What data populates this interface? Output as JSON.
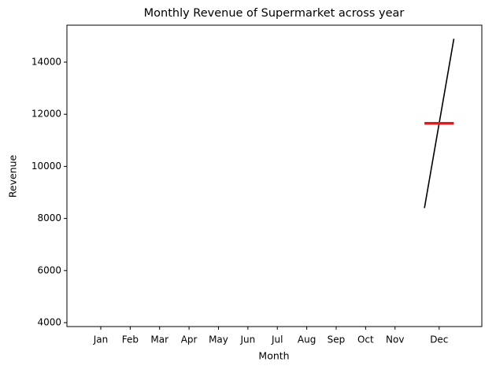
{
  "chart_data": {
    "type": "month_plot",
    "title": "Monthly Revenue of Supermarket across year",
    "xlabel": "Month",
    "ylabel": "Revenue",
    "categories": [
      "Jan",
      "Feb",
      "Mar",
      "Apr",
      "May",
      "Jun",
      "Jul",
      "Aug",
      "Sep",
      "Oct",
      "Nov",
      "Dec"
    ],
    "values": [
      [],
      [],
      [],
      [],
      [],
      [],
      [],
      [],
      [],
      [],
      [],
      [
        8400,
        14900
      ]
    ],
    "means": [
      null,
      null,
      null,
      null,
      null,
      null,
      null,
      null,
      null,
      null,
      null,
      11650
    ],
    "color": "#000000",
    "mean_color": "#e31a1c",
    "ylim": [
      3850,
      15420
    ],
    "yticks": [
      4000,
      6000,
      8000,
      10000,
      12000,
      14000
    ],
    "grid": false
  }
}
